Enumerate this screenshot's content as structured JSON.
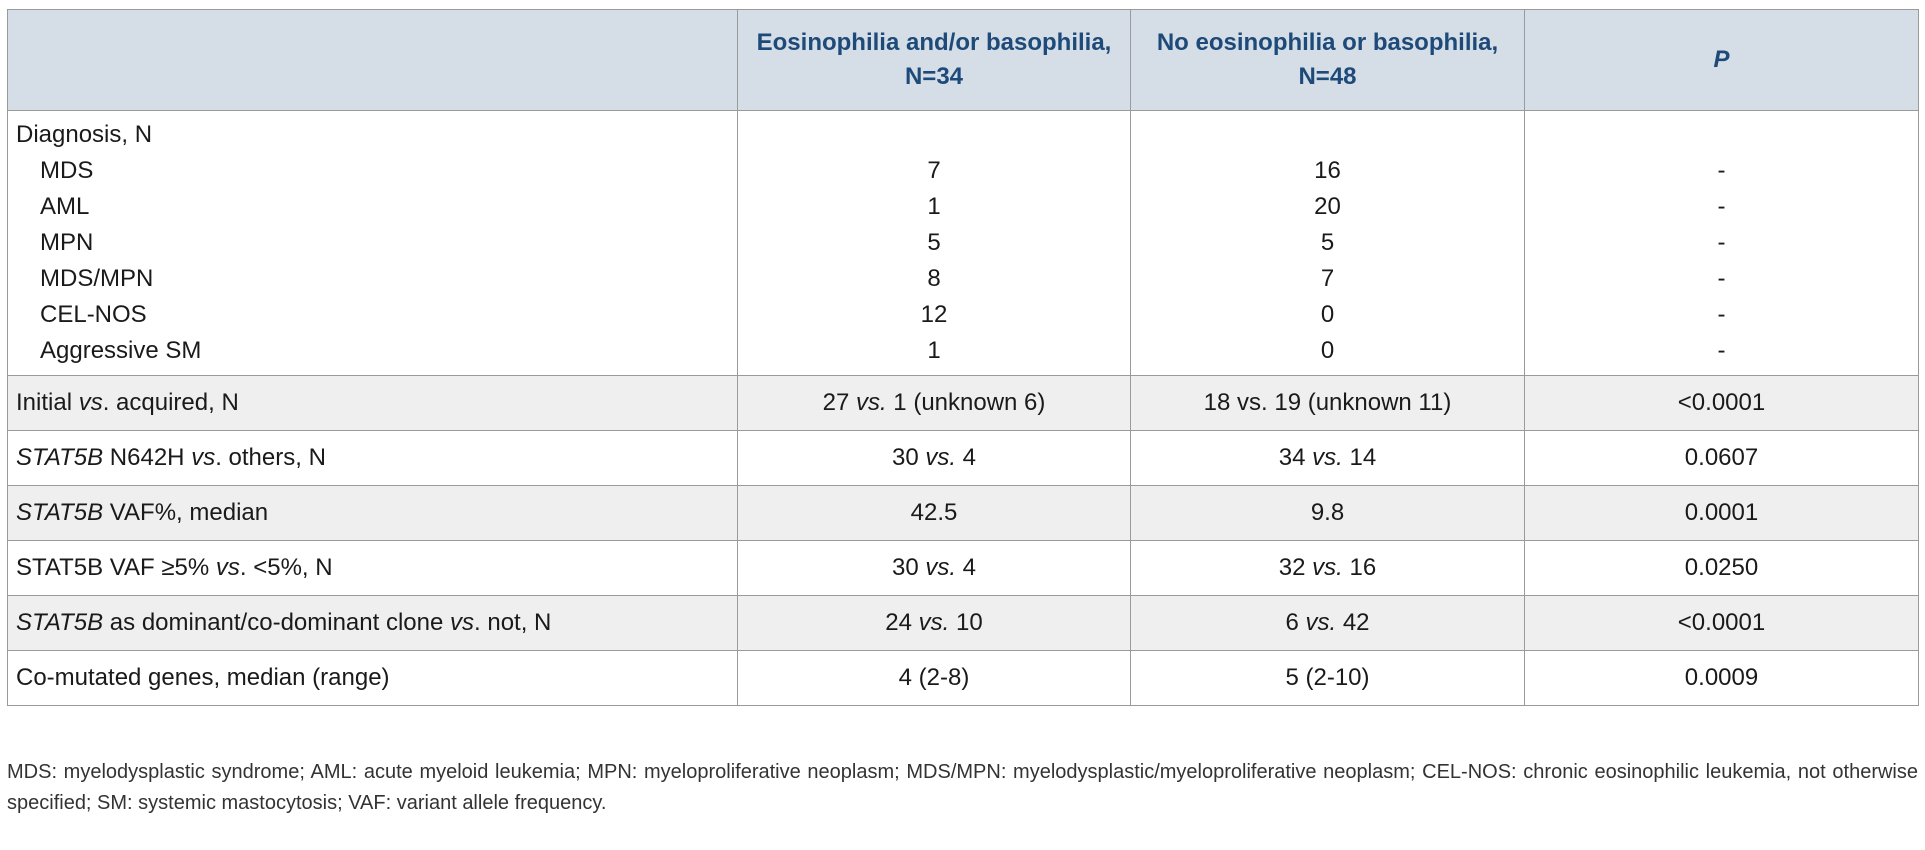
{
  "table": {
    "header": [
      "Eosinophilia and/or basophilia, N=34",
      "No eosinophilia or basophilia, N=48",
      [
        {
          "text": "P",
          "italic": true
        }
      ]
    ],
    "diagnosis": {
      "label": "Diagnosis, N",
      "rows": [
        [
          "MDS",
          "7",
          "16",
          "-"
        ],
        [
          "AML",
          "1",
          "20",
          "-"
        ],
        [
          "MPN",
          "5",
          "5",
          "-"
        ],
        [
          "MDS/MPN",
          "8",
          "7",
          "-"
        ],
        [
          "CEL-NOS",
          "12",
          "0",
          "-"
        ],
        [
          "Aggressive SM",
          "1",
          "0",
          "-"
        ]
      ]
    },
    "rows": [
      [
        [
          {
            "text": "Initial "
          },
          {
            "text": "vs",
            "italic": true
          },
          {
            "text": ". acquired, N"
          }
        ],
        [
          {
            "text": "27 "
          },
          {
            "text": "vs.",
            "italic": true
          },
          {
            "text": " 1 (unknown 6)"
          }
        ],
        "18 vs. 19 (unknown 11)",
        "<0.0001"
      ],
      [
        [
          {
            "text": "STAT5B",
            "italic": true
          },
          {
            "text": " N642H "
          },
          {
            "text": "vs",
            "italic": true
          },
          {
            "text": ". others, N"
          }
        ],
        [
          {
            "text": "30 "
          },
          {
            "text": "vs.",
            "italic": true
          },
          {
            "text": " 4"
          }
        ],
        [
          {
            "text": "34 "
          },
          {
            "text": "vs.",
            "italic": true
          },
          {
            "text": " 14"
          }
        ],
        "0.0607"
      ],
      [
        [
          {
            "text": "STAT5B",
            "italic": true
          },
          {
            "text": " VAF%, median"
          }
        ],
        "42.5",
        "9.8",
        "0.0001"
      ],
      [
        [
          {
            "text": "STAT5B VAF ≥5% "
          },
          {
            "text": "vs",
            "italic": true
          },
          {
            "text": ". <5%, N"
          }
        ],
        [
          {
            "text": "30 "
          },
          {
            "text": "vs.",
            "italic": true
          },
          {
            "text": " 4"
          }
        ],
        [
          {
            "text": "32 "
          },
          {
            "text": "vs.",
            "italic": true
          },
          {
            "text": " 16"
          }
        ],
        "0.0250"
      ],
      [
        [
          {
            "text": "STAT5B",
            "italic": true
          },
          {
            "text": " as dominant/co-dominant clone "
          },
          {
            "text": "vs",
            "italic": true
          },
          {
            "text": ". not, N"
          }
        ],
        [
          {
            "text": "24 "
          },
          {
            "text": "vs.",
            "italic": true
          },
          {
            "text": " 10"
          }
        ],
        [
          {
            "text": "6 "
          },
          {
            "text": "vs.",
            "italic": true
          },
          {
            "text": " 42"
          }
        ],
        "<0.0001"
      ],
      [
        "Co-mutated genes, median (range)",
        "4 (2-8)",
        "5 (2-10)",
        "0.0009"
      ]
    ]
  },
  "footnote": "MDS: myelodysplastic syndrome; AML: acute myeloid leukemia; MPN: myeloproliferative neoplasm; MDS/MPN: myelodysplastic/myeloproliferative neoplasm; CEL-NOS: chronic eosinophilic leukemia, not otherwise specified; SM: systemic mastocytosis; VAF: variant allele frequency."
}
